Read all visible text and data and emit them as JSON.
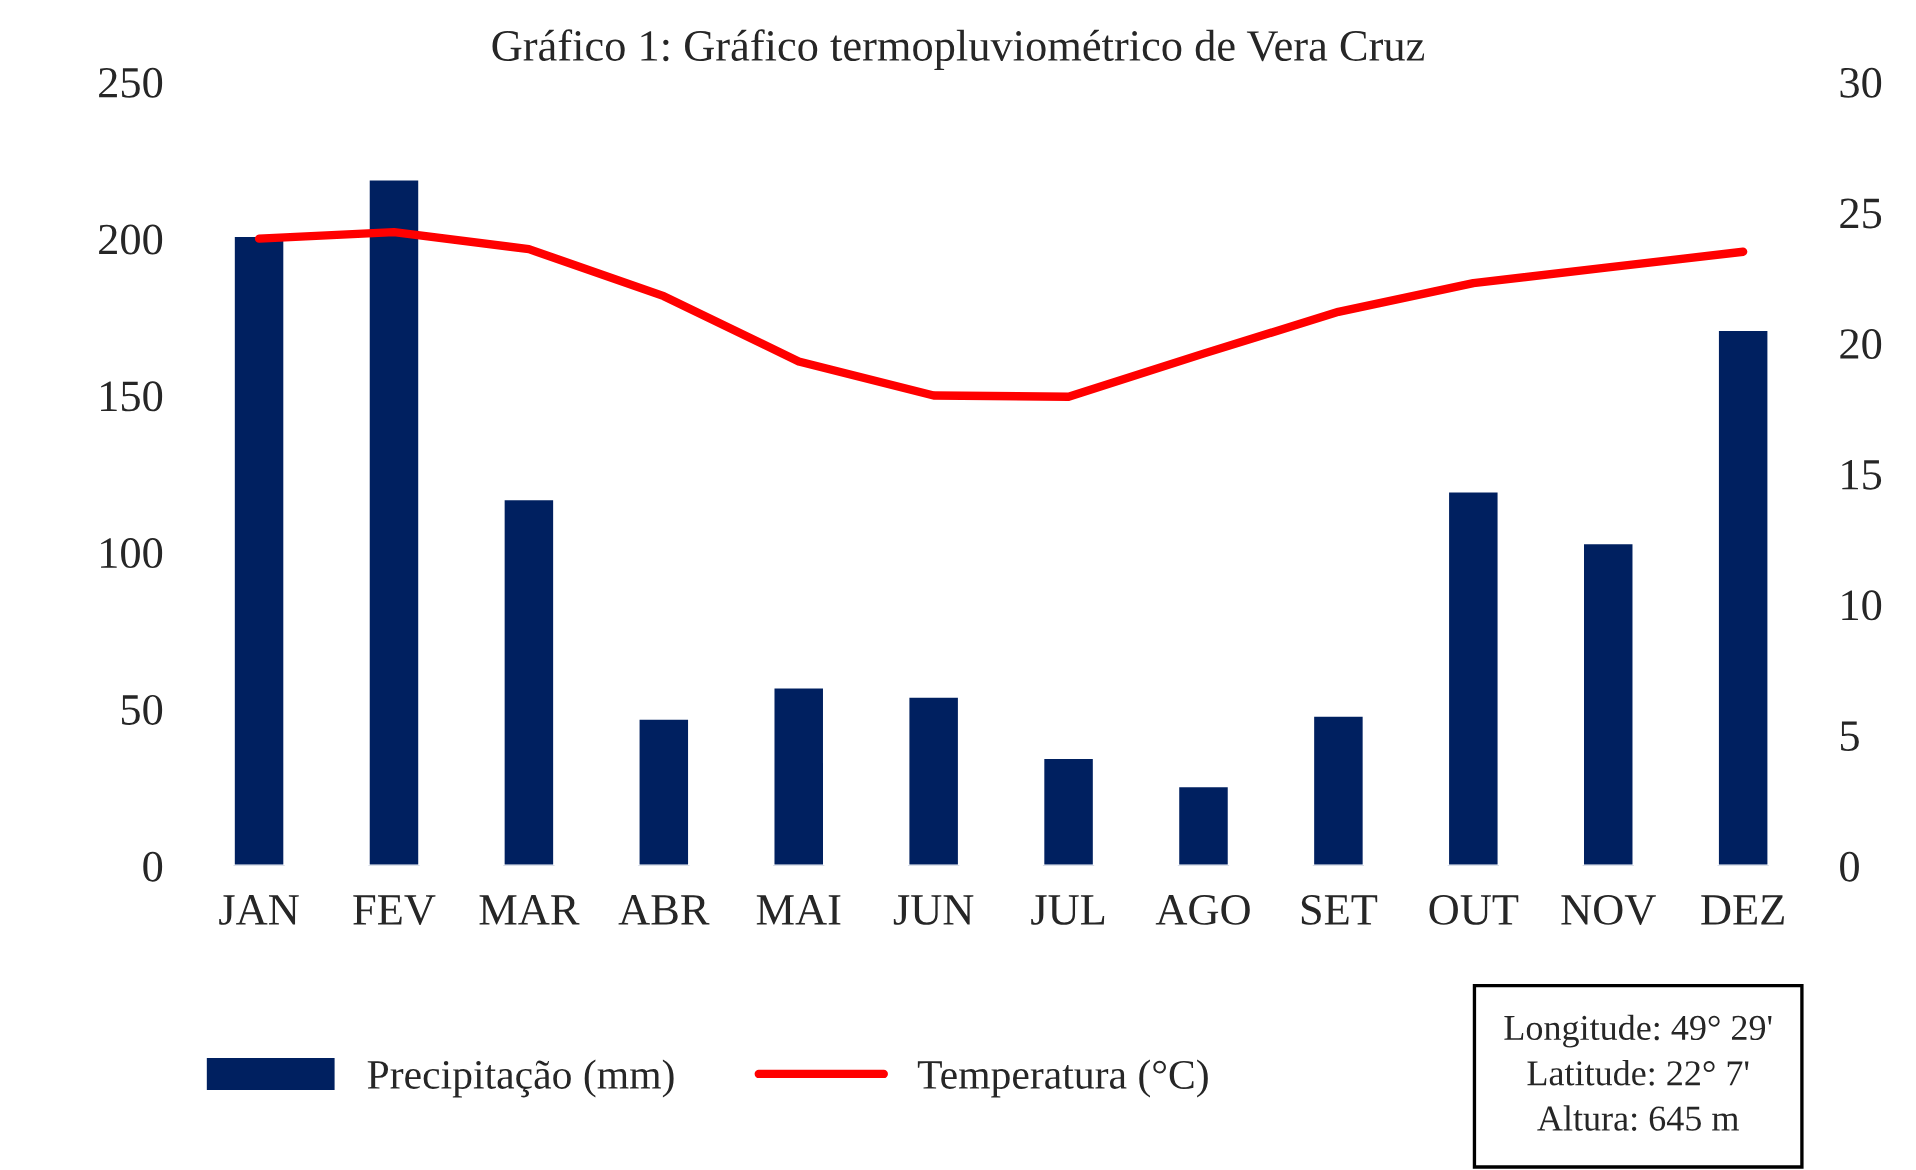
{
  "chart_data": {
    "type": "bar",
    "title": "Gráfico 1: Gráfico termopluviométrico de Vera Cruz",
    "categories": [
      "JAN",
      "FEV",
      "MAR",
      "ABR",
      "MAI",
      "JUN",
      "JUL",
      "AGO",
      "SET",
      "OUT",
      "NOV",
      "DEZ"
    ],
    "series": [
      {
        "name": "Precipitação (mm)",
        "color": "#002060",
        "values": [
          201,
          219,
          117,
          47,
          57,
          54,
          34.5,
          25.5,
          48,
          119.5,
          103,
          171
        ]
      },
      {
        "name": "Temperatura (°C)",
        "type": "line",
        "axis": "y2",
        "color": "#ff0000",
        "values": [
          24.0,
          24.25,
          23.6,
          21.8,
          19.3,
          18.0,
          17.95,
          19.6,
          21.2,
          22.3,
          22.9,
          23.5
        ]
      }
    ],
    "ylim": [
      0,
      250
    ],
    "yticks": [
      0,
      50,
      100,
      150,
      200,
      250
    ],
    "y2lim": [
      0,
      30
    ],
    "y2ticks": [
      0,
      5,
      10,
      15,
      20,
      25,
      30
    ],
    "grid": false,
    "legend": "bottom",
    "marker": "none",
    "line_style": "solid",
    "annotations": [
      "Longitude: 49° 29'\nLatitude: 22° 7'\nAltura: 645 m"
    ]
  }
}
